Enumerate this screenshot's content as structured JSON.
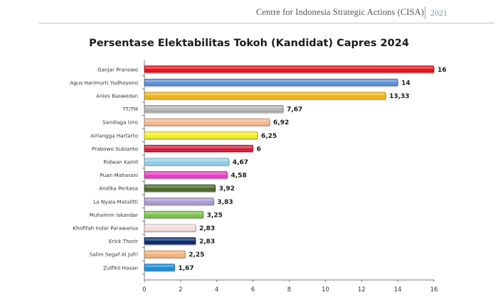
{
  "header": {
    "organization": "Centre for Indonesia Strategic Actions (CISA)",
    "year": "2021"
  },
  "chart_data": {
    "type": "bar",
    "orientation": "horizontal",
    "title": "Persentase Elektabilitas Tokoh (Kandidat) Capres 2024",
    "xlabel": "",
    "ylabel": "",
    "xlim": [
      0,
      16
    ],
    "x_ticks": [
      "0",
      "2",
      "4",
      "6",
      "8",
      "10",
      "12",
      "14",
      "16"
    ],
    "grid": false,
    "legend": "none",
    "categories": [
      "Ganjar Pranowo",
      "Agus Harimurti Yudhoyono",
      "Anies Baswedan",
      "TT/TM",
      "Sandiaga Uno",
      "Airlangga Hartarto",
      "Prabowo Subianto",
      "Ridwan Kamil",
      "Puan Maharani",
      "Andika Perkasa",
      "La Nyala Matalitti",
      "Muhaimin Iskandar",
      "Khofifah Indar Parawansa",
      "Erick Thorir",
      "Salim Segaf Al Jufri",
      "Zulfikli Hasan"
    ],
    "values": [
      16,
      14,
      13.33,
      7.67,
      6.92,
      6.25,
      6,
      4.67,
      4.58,
      3.92,
      3.83,
      3.25,
      2.83,
      2.83,
      2.25,
      1.67
    ],
    "value_labels": [
      "16",
      "14",
      "13,33",
      "7,67",
      "6,92",
      "6,25",
      "6",
      "4,67",
      "4,58",
      "3,92",
      "3,83",
      "3,25",
      "2,83",
      "2,83",
      "2,25",
      "1,67"
    ],
    "colors": [
      "#e8141b",
      "#5b8fd6",
      "#f0b418",
      "#b4b4b4",
      "#f5b98f",
      "#f3f01c",
      "#d2203c",
      "#8fd0e4",
      "#e83fc7",
      "#4d6a2a",
      "#a99ccf",
      "#7dc24a",
      "#f2dcdc",
      "#0e2f6e",
      "#f4b27a",
      "#1b8fd8"
    ]
  }
}
